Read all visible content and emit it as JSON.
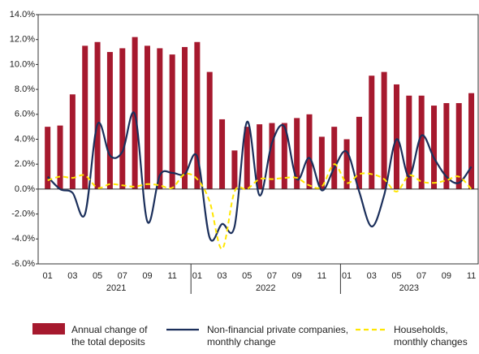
{
  "chart_data": {
    "type": "bar-line",
    "categories": [
      "01",
      null,
      "03",
      null,
      "05",
      null,
      "07",
      null,
      "09",
      null,
      "11",
      null,
      "01",
      null,
      "03",
      null,
      "05",
      null,
      "07",
      null,
      "09",
      null,
      "11",
      null,
      "01",
      null,
      "03",
      null,
      "05",
      null,
      "07",
      null,
      "09",
      null,
      "11"
    ],
    "groups": [
      {
        "label": "2021",
        "count": 12
      },
      {
        "label": "2022",
        "count": 12
      },
      {
        "label": "2023",
        "count": 11
      }
    ],
    "series": [
      {
        "name": "Annual change of the total deposits",
        "type": "bar",
        "color": "#a6192e",
        "values": [
          5.0,
          5.1,
          7.6,
          11.5,
          11.8,
          11.0,
          11.3,
          12.2,
          11.5,
          11.3,
          10.8,
          11.4,
          11.8,
          9.4,
          5.6,
          3.1,
          5.0,
          5.2,
          5.3,
          5.3,
          5.7,
          6.0,
          4.2,
          5.0,
          4.0,
          5.8,
          9.1,
          9.4,
          8.4,
          7.5,
          7.5,
          6.7,
          6.9,
          6.9,
          7.7
        ]
      },
      {
        "name": "Non-financial private companies, monthly change",
        "type": "line",
        "color": "#1b2f5b",
        "values": [
          1.0,
          0.0,
          -0.3,
          -2.0,
          5.2,
          2.7,
          3.0,
          6.0,
          -2.6,
          1.1,
          1.3,
          1.2,
          2.6,
          -3.9,
          -2.8,
          -3.0,
          5.4,
          -0.5,
          3.7,
          5.0,
          0.8,
          2.5,
          -0.1,
          1.7,
          3.0,
          -0.2,
          -3.0,
          -0.5,
          4.0,
          1.0,
          4.3,
          2.5,
          1.0,
          0.5,
          1.8
        ]
      },
      {
        "name": "Households, monthly changes",
        "type": "dashed-line",
        "color": "#ffe600",
        "values": [
          0.7,
          1.0,
          0.9,
          1.1,
          0.1,
          0.4,
          0.3,
          0.2,
          0.4,
          0.3,
          0.1,
          1.2,
          0.8,
          -1.0,
          -4.8,
          -0.2,
          0.0,
          0.8,
          0.8,
          0.9,
          0.9,
          0.3,
          0.2,
          2.0,
          0.5,
          1.2,
          1.2,
          0.8,
          -0.2,
          1.1,
          0.6,
          0.5,
          0.7,
          1.0,
          0.0
        ]
      }
    ],
    "ylim": [
      -6,
      14
    ],
    "yticks": [
      {
        "value": -6,
        "label": "-6.0%"
      },
      {
        "value": -4,
        "label": "-4.0%"
      },
      {
        "value": -2,
        "label": "-2.0%"
      },
      {
        "value": 0,
        "label": "0.0%"
      },
      {
        "value": 2,
        "label": "2.0%"
      },
      {
        "value": 4,
        "label": "4.0%"
      },
      {
        "value": 6,
        "label": "6.0%"
      },
      {
        "value": 8,
        "label": "8.0%"
      },
      {
        "value": 10,
        "label": "10.0%"
      },
      {
        "value": 12,
        "label": "12.0%"
      },
      {
        "value": 14,
        "label": "14.0%"
      }
    ],
    "grid": false
  }
}
